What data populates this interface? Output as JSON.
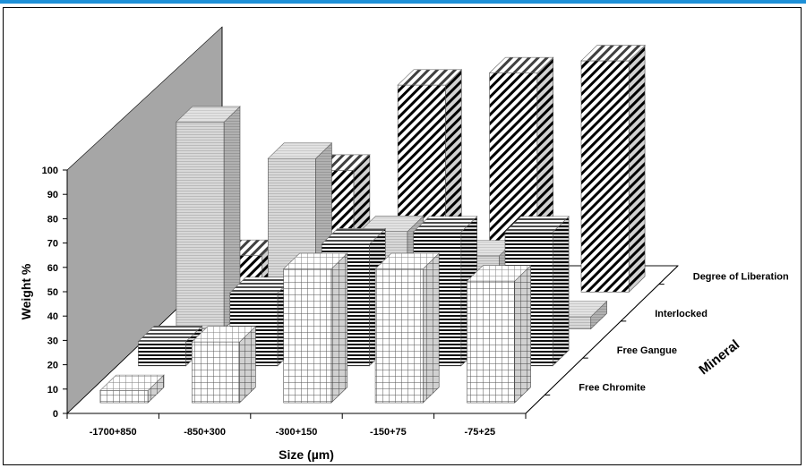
{
  "chart_data": {
    "type": "bar",
    "variant": "3d-column",
    "categories": [
      "-1700+850",
      "-850+300",
      "-300+150",
      "-150+75",
      "-75+25"
    ],
    "series": [
      {
        "name": "Free Chromite",
        "values": [
          5,
          25,
          55,
          55,
          50
        ],
        "pattern": "grid"
      },
      {
        "name": "Free Gangue",
        "values": [
          10,
          30,
          50,
          55,
          55
        ],
        "pattern": "hlines"
      },
      {
        "name": "Interlocked",
        "values": [
          85,
          70,
          40,
          30,
          5
        ],
        "pattern": "fine-hatch"
      },
      {
        "name": "Degree of Liberation",
        "values": [
          15,
          50,
          85,
          90,
          95
        ],
        "pattern": "diag"
      }
    ],
    "xlabel": "Size (µm)",
    "ylabel": "Weight %",
    "zlabel": "Mineral",
    "ylim": [
      0,
      100
    ],
    "yticks": [
      "0",
      "10",
      "20",
      "30",
      "40",
      "50",
      "60",
      "70",
      "80",
      "90",
      "100"
    ],
    "back_wall_color": "#a6a6a6",
    "accent_bar_color": "#1e90d8",
    "grid": false
  }
}
